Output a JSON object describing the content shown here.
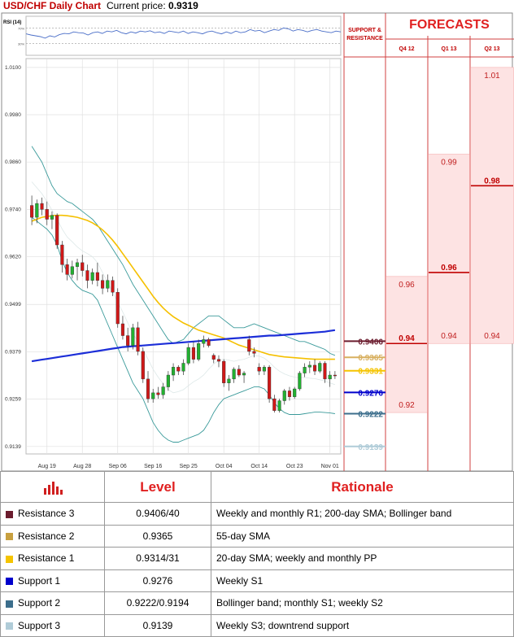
{
  "header": {
    "title": "USD/CHF Daily Chart",
    "price_label": "Current price:",
    "price_value": "0.9319"
  },
  "rsi": {
    "label": "RSI (14)",
    "levels": [
      "70%",
      "30%"
    ],
    "values": [
      0.55,
      0.52,
      0.5,
      0.48,
      0.44,
      0.5,
      0.47,
      0.53,
      0.56,
      0.55,
      0.6,
      0.58,
      0.57,
      0.52,
      0.58,
      0.6,
      0.56,
      0.62,
      0.6,
      0.64,
      0.58,
      0.55,
      0.6,
      0.57,
      0.62,
      0.6,
      0.63,
      0.58,
      0.6,
      0.56,
      0.62,
      0.6,
      0.58,
      0.62,
      0.56,
      0.6,
      0.58,
      0.55,
      0.6,
      0.62,
      0.58,
      0.55,
      0.6,
      0.56,
      0.62,
      0.58,
      0.6,
      0.66,
      0.62,
      0.64,
      0.58,
      0.62,
      0.66,
      0.64,
      0.7,
      0.68,
      0.62,
      0.66,
      0.64,
      0.6,
      0.64,
      0.66,
      0.62,
      0.6,
      0.58,
      0.62,
      0.6
    ]
  },
  "sr_panel": {
    "title_line1": "SUPPORT &",
    "title_line2": "RESISTANCE",
    "labels": [
      {
        "value": "0.9406",
        "price": 0.9406,
        "color": "#6b1c2e"
      },
      {
        "value": "0.9365",
        "price": 0.9365,
        "color": "#d8b060"
      },
      {
        "value": "0.9331",
        "price": 0.9331,
        "color": "#f5c400"
      },
      {
        "value": "0.9276",
        "price": 0.9276,
        "color": "#0000cc"
      },
      {
        "value": "0.9222",
        "price": 0.9222,
        "color": "#3c6e8c"
      },
      {
        "value": "0.9139",
        "price": 0.9139,
        "color": "#b0ccd8"
      }
    ]
  },
  "forecasts": {
    "title": "FORECASTS",
    "columns": [
      {
        "header": "Q4 12",
        "low": "0.92",
        "low_p": 0.9225,
        "mid": "0.94",
        "mid_p": 0.94,
        "high": "0.96",
        "high_p": 0.957
      },
      {
        "header": "Q1 13",
        "low": "0.94",
        "low_p": 0.94,
        "mid": "0.96",
        "mid_p": 0.958,
        "high": "0.99",
        "high_p": 0.988
      },
      {
        "header": "Q2 13",
        "low": "0.94",
        "low_p": 0.94,
        "mid": "0.98",
        "mid_p": 0.98,
        "high": "1.01",
        "high_p": 1.01
      }
    ]
  },
  "chart_data": {
    "type": "candlestick",
    "title": "USD/CHF Daily Chart",
    "ylim": [
      0.912,
      1.011
    ],
    "yticks": [
      "1.0100",
      "0.9980",
      "0.9860",
      "0.9740",
      "0.9620",
      "0.9499",
      "0.9379",
      "0.9259",
      "0.9139"
    ],
    "ytick_values": [
      1.01,
      0.998,
      0.986,
      0.974,
      0.962,
      0.9499,
      0.9379,
      0.9259,
      0.9139
    ],
    "xticks": [
      "Aug 19",
      "Aug 28",
      "Sep 06",
      "Sep 16",
      "Sep 25",
      "Oct 04",
      "Oct 14",
      "Oct 23",
      "Nov 01"
    ],
    "xtick_index": [
      3,
      10,
      17,
      24,
      31,
      38,
      45,
      52,
      59
    ],
    "candles": [
      [
        0.975,
        0.9775,
        0.97,
        0.972
      ],
      [
        0.972,
        0.9765,
        0.9705,
        0.9755
      ],
      [
        0.9755,
        0.977,
        0.9725,
        0.974
      ],
      [
        0.974,
        0.976,
        0.97,
        0.9715
      ],
      [
        0.9715,
        0.9735,
        0.969,
        0.9725
      ],
      [
        0.9725,
        0.973,
        0.964,
        0.965
      ],
      [
        0.965,
        0.966,
        0.958,
        0.96
      ],
      [
        0.96,
        0.9615,
        0.956,
        0.9575
      ],
      [
        0.9575,
        0.961,
        0.9565,
        0.9595
      ],
      [
        0.9595,
        0.9615,
        0.956,
        0.9605
      ],
      [
        0.9605,
        0.9625,
        0.957,
        0.9585
      ],
      [
        0.9585,
        0.96,
        0.954,
        0.956
      ],
      [
        0.956,
        0.959,
        0.955,
        0.958
      ],
      [
        0.958,
        0.9605,
        0.9545,
        0.956
      ],
      [
        0.956,
        0.9575,
        0.9525,
        0.954
      ],
      [
        0.954,
        0.9575,
        0.953,
        0.956
      ],
      [
        0.956,
        0.957,
        0.952,
        0.953
      ],
      [
        0.953,
        0.954,
        0.944,
        0.945
      ],
      [
        0.945,
        0.947,
        0.941,
        0.942
      ],
      [
        0.942,
        0.944,
        0.938,
        0.9395
      ],
      [
        0.9395,
        0.945,
        0.9385,
        0.944
      ],
      [
        0.944,
        0.9455,
        0.937,
        0.938
      ],
      [
        0.938,
        0.939,
        0.93,
        0.931
      ],
      [
        0.931,
        0.933,
        0.925,
        0.926
      ],
      [
        0.926,
        0.9285,
        0.925,
        0.9275
      ],
      [
        0.9275,
        0.929,
        0.926,
        0.927
      ],
      [
        0.927,
        0.93,
        0.926,
        0.929
      ],
      [
        0.929,
        0.933,
        0.928,
        0.932
      ],
      [
        0.932,
        0.935,
        0.9305,
        0.934
      ],
      [
        0.934,
        0.9345,
        0.932,
        0.933
      ],
      [
        0.933,
        0.936,
        0.932,
        0.935
      ],
      [
        0.935,
        0.94,
        0.9345,
        0.939
      ],
      [
        0.939,
        0.9405,
        0.935,
        0.936
      ],
      [
        0.936,
        0.941,
        0.9355,
        0.94
      ],
      [
        0.94,
        0.942,
        0.939,
        0.941
      ],
      [
        0.941,
        0.9415,
        0.939,
        0.9395
      ],
      [
        0.937,
        0.9375,
        0.935,
        0.936
      ],
      [
        0.936,
        0.937,
        0.934,
        0.9355
      ],
      [
        0.9355,
        0.936,
        0.929,
        0.93
      ],
      [
        0.93,
        0.932,
        0.928,
        0.931
      ],
      [
        0.931,
        0.934,
        0.93,
        0.9335
      ],
      [
        0.9335,
        0.9345,
        0.9315,
        0.932
      ],
      [
        0.932,
        0.933,
        0.93,
        0.9325
      ],
      [
        0.941,
        0.942,
        0.937,
        0.938
      ],
      [
        0.938,
        0.939,
        0.9365,
        0.9375
      ],
      [
        0.934,
        0.935,
        0.932,
        0.933
      ],
      [
        0.933,
        0.9345,
        0.932,
        0.934
      ],
      [
        0.934,
        0.9345,
        0.925,
        0.926
      ],
      [
        0.926,
        0.927,
        0.9225,
        0.923
      ],
      [
        0.923,
        0.926,
        0.9225,
        0.9255
      ],
      [
        0.9255,
        0.9285,
        0.9245,
        0.928
      ],
      [
        0.928,
        0.929,
        0.9255,
        0.9265
      ],
      [
        0.9265,
        0.929,
        0.926,
        0.9285
      ],
      [
        0.9285,
        0.933,
        0.928,
        0.9325
      ],
      [
        0.9325,
        0.935,
        0.9315,
        0.934
      ],
      [
        0.934,
        0.9355,
        0.9325,
        0.9345
      ],
      [
        0.9345,
        0.936,
        0.932,
        0.933
      ],
      [
        0.933,
        0.9355,
        0.9325,
        0.935
      ],
      [
        0.935,
        0.9355,
        0.93,
        0.931
      ],
      [
        0.931,
        0.933,
        0.929,
        0.932
      ],
      [
        0.932,
        0.933,
        0.931,
        0.9319
      ]
    ],
    "bb_upper": [
      0.99,
      0.988,
      0.986,
      0.983,
      0.98,
      0.978,
      0.977,
      0.976,
      0.9755,
      0.9745,
      0.9735,
      0.9725,
      0.9715,
      0.97,
      0.968,
      0.966,
      0.964,
      0.962,
      0.96,
      0.9575,
      0.955,
      0.953,
      0.951,
      0.949,
      0.947,
      0.945,
      0.943,
      0.941,
      0.94,
      0.9405,
      0.941,
      0.9425,
      0.944,
      0.945,
      0.946,
      0.947,
      0.947,
      0.947,
      0.946,
      0.945,
      0.944,
      0.944,
      0.944,
      0.9445,
      0.945,
      0.9445,
      0.944,
      0.9435,
      0.943,
      0.9425,
      0.942,
      0.9415,
      0.941,
      0.9405,
      0.9405,
      0.94,
      0.9395,
      0.939,
      0.9385,
      0.9375,
      0.937
    ],
    "bb_lower": [
      0.972,
      0.971,
      0.97,
      0.969,
      0.9675,
      0.965,
      0.961,
      0.958,
      0.956,
      0.9545,
      0.9535,
      0.953,
      0.9525,
      0.951,
      0.948,
      0.945,
      0.942,
      0.939,
      0.936,
      0.933,
      0.93,
      0.928,
      0.926,
      0.923,
      0.92,
      0.918,
      0.9165,
      0.9155,
      0.915,
      0.915,
      0.9155,
      0.916,
      0.9165,
      0.917,
      0.918,
      0.92,
      0.9225,
      0.9245,
      0.926,
      0.9265,
      0.927,
      0.9275,
      0.928,
      0.9285,
      0.929,
      0.929,
      0.9285,
      0.927,
      0.925,
      0.9235,
      0.9225,
      0.922,
      0.922,
      0.922,
      0.9222,
      0.9224,
      0.9226,
      0.9226,
      0.9225,
      0.9224,
      0.9222
    ],
    "bb_mid": [
      0.981,
      0.9795,
      0.978,
      0.976,
      0.9738,
      0.9715,
      0.969,
      0.967,
      0.9658,
      0.9645,
      0.9635,
      0.9628,
      0.962,
      0.9605,
      0.958,
      0.9555,
      0.953,
      0.9505,
      0.948,
      0.9452,
      0.9425,
      0.9405,
      0.9385,
      0.936,
      0.9335,
      0.9315,
      0.9298,
      0.9283,
      0.9275,
      0.9278,
      0.9283,
      0.9293,
      0.9303,
      0.931,
      0.932,
      0.9335,
      0.9348,
      0.9358,
      0.936,
      0.9358,
      0.9355,
      0.9358,
      0.936,
      0.9365,
      0.937,
      0.9368,
      0.9363,
      0.9353,
      0.934,
      0.933,
      0.9323,
      0.9318,
      0.9315,
      0.9313,
      0.9314,
      0.9312,
      0.9311,
      0.9308,
      0.9305,
      0.93,
      0.9296
    ],
    "sma55": [
      0.971,
      0.9715,
      0.972,
      0.9722,
      0.9724,
      0.9725,
      0.9725,
      0.9724,
      0.9722,
      0.972,
      0.9716,
      0.9712,
      0.9706,
      0.9698,
      0.9688,
      0.9676,
      0.9662,
      0.9646,
      0.9628,
      0.961,
      0.9592,
      0.9574,
      0.9556,
      0.9538,
      0.952,
      0.9504,
      0.949,
      0.9478,
      0.9468,
      0.946,
      0.9452,
      0.9446,
      0.944,
      0.9434,
      0.943,
      0.9426,
      0.9422,
      0.9418,
      0.9414,
      0.9408,
      0.9402,
      0.9396,
      0.9392,
      0.9388,
      0.9384,
      0.938,
      0.9376,
      0.9372,
      0.937,
      0.9368,
      0.9366,
      0.9365,
      0.9364,
      0.9363,
      0.9362,
      0.9361,
      0.936,
      0.936,
      0.936,
      0.936,
      0.936
    ],
    "sma200": [
      0.9355,
      0.9357,
      0.9359,
      0.9361,
      0.9363,
      0.9365,
      0.9367,
      0.9369,
      0.9371,
      0.9373,
      0.9375,
      0.9377,
      0.9379,
      0.9381,
      0.9383,
      0.9385,
      0.9387,
      0.9389,
      0.9391,
      0.9392,
      0.9393,
      0.9394,
      0.9395,
      0.9396,
      0.9397,
      0.9398,
      0.9399,
      0.94,
      0.9401,
      0.9402,
      0.9403,
      0.9404,
      0.9405,
      0.9406,
      0.9407,
      0.9408,
      0.9409,
      0.941,
      0.9411,
      0.9412,
      0.9413,
      0.9414,
      0.9415,
      0.9416,
      0.9417,
      0.9418,
      0.9419,
      0.942,
      0.942,
      0.9421,
      0.9422,
      0.9423,
      0.9424,
      0.9425,
      0.9426,
      0.9427,
      0.9428,
      0.9429,
      0.943,
      0.9432,
      0.9434
    ]
  },
  "table": {
    "headers": {
      "level": "Level",
      "rationale": "Rationale"
    },
    "rows": [
      {
        "name": "Resistance 3",
        "color": "#6b1c2e",
        "level": "0.9406/40",
        "rationale": "Weekly and monthly R1; 200-day SMA; Bollinger band"
      },
      {
        "name": "Resistance 2",
        "color": "#c8a040",
        "level": "0.9365",
        "rationale": "55-day SMA"
      },
      {
        "name": "Resistance 1",
        "color": "#f5c400",
        "level": "0.9314/31",
        "rationale": "20-day SMA; weekly and monthly PP"
      },
      {
        "name": "Support 1",
        "color": "#0000cc",
        "level": "0.9276",
        "rationale": "Weekly S1"
      },
      {
        "name": "Support 2",
        "color": "#3c6e8c",
        "level": "0.9222/0.9194",
        "rationale": "Bollinger band; monthly S1; weekly S2"
      },
      {
        "name": "Support 3",
        "color": "#b0ccd8",
        "level": "0.9139",
        "rationale": "Weekly S3; downtrend support"
      }
    ]
  }
}
